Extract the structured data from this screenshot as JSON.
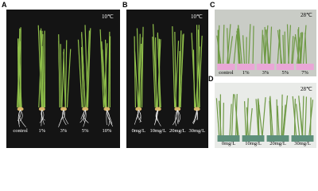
{
  "panels": [
    {
      "label": "A",
      "temperature": "10℃",
      "samples": [
        "control",
        "1%",
        "3%",
        "5%",
        "10%"
      ]
    },
    {
      "label": "B",
      "temperature": "10℃",
      "samples": [
        "0mg/L",
        "10mg/L",
        "20mg/L",
        "30mg/L"
      ]
    },
    {
      "label": "C",
      "temperature": "28℃",
      "samples": [
        "control",
        "1%",
        "3%",
        "5%",
        "7%"
      ]
    },
    {
      "label": "D",
      "temperature": "28℃",
      "samples": [
        "0mg/L",
        "10mg/L",
        "20mg/L",
        "30mg/L"
      ]
    }
  ]
}
